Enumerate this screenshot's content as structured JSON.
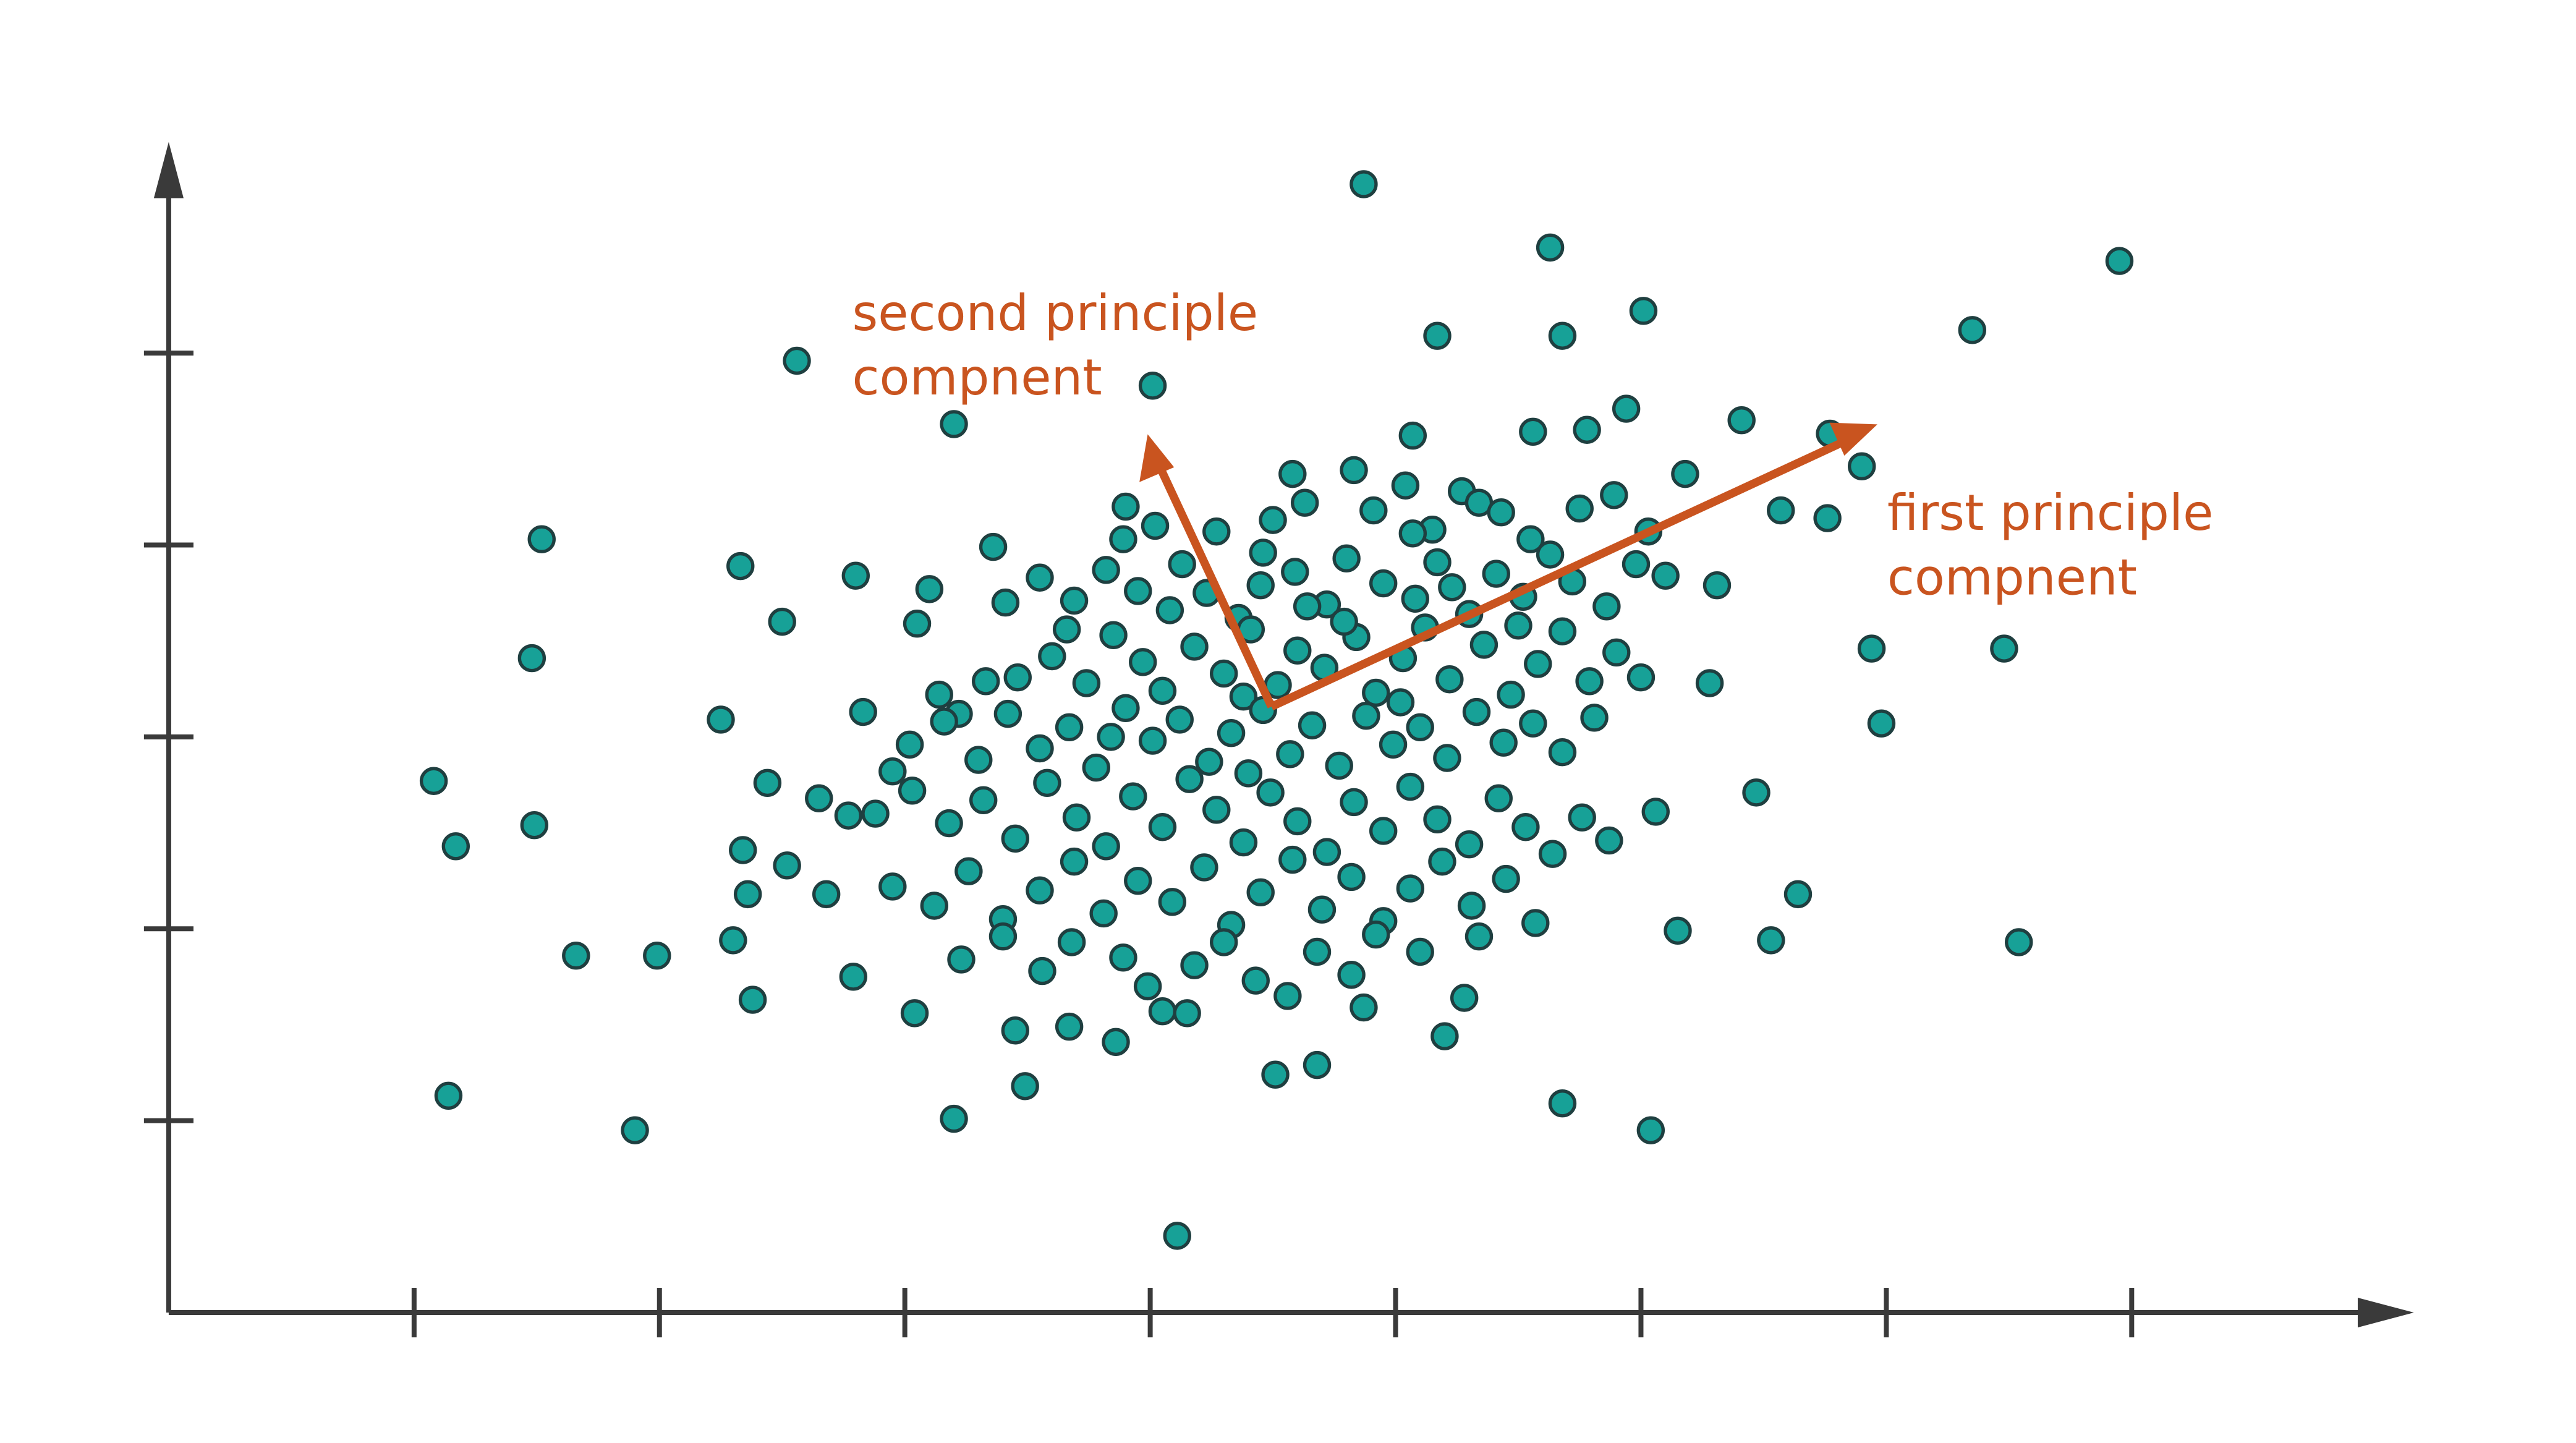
{
  "chart_data": {
    "type": "scatter",
    "color": "#17a197",
    "edgecolor": "#1f3f40",
    "annotation_color": "#c9541f",
    "axis_color": "#3a3a3a",
    "xlim": [
      0,
      9.15
    ],
    "ylim": [
      0,
      6.1
    ],
    "xticks": [
      1,
      2,
      3,
      4,
      5,
      6,
      7,
      8
    ],
    "yticks": [
      1,
      2,
      3,
      4,
      5
    ],
    "annotations": [
      [
        "second principle",
        "compnent"
      ],
      [
        "first principle",
        "compnent"
      ]
    ],
    "x": [
      4.87,
      5.63,
      7.95,
      6.01,
      5.17,
      5.68,
      7.35,
      2.56,
      4.01,
      3.2,
      1.52,
      2.33,
      1.48,
      2.5,
      2.8,
      1.08,
      1.17,
      1.49,
      2.25,
      1.66,
      1.99,
      1.14,
      1.9,
      3.2,
      4.11,
      5.68,
      6.04,
      7.54,
      7.48,
      6.94,
      6.98,
      6.47,
      6.64,
      6.53,
      6.15,
      6.06,
      6.76,
      6.57,
      6.9,
      6.77,
      6.41,
      4.51,
      4.68,
      5.2,
      5.28,
      4.87,
      3.49,
      3.86,
      3.04,
      2.38,
      2.79,
      2.3,
      2.36,
      2.34,
      2.52,
      2.68,
      2.44,
      2.65,
      2.77,
      2.95,
      2.83,
      3.05,
      3.1,
      3.36,
      3.41,
      3.33,
      3.22,
      3.14,
      6.28,
      6.31,
      6.18,
      5.94,
      5.78,
      5.56,
      5.07,
      3.45,
      3.67,
      4.05,
      4.15,
      3.9,
      4.02,
      4.27,
      4.5,
      4.58,
      4.63,
      4.83,
      4.91,
      5.04,
      5.15,
      5.27,
      5.34,
      5.43,
      5.55,
      5.75,
      5.89,
      6.03,
      3.89,
      4.46,
      5.07,
      3.55,
      3.69,
      3.82,
      3.95,
      4.08,
      4.23,
      4.36,
      4.45,
      4.59,
      4.72,
      4.8,
      4.95,
      5.08,
      5.17,
      5.3,
      5.41,
      5.52,
      5.63,
      5.72,
      5.86,
      5.98,
      6.1,
      4.13,
      4.64,
      5.23,
      3.46,
      3.6,
      3.74,
      3.85,
      3.97,
      4.05,
      4.18,
      4.3,
      4.41,
      4.52,
      4.6,
      4.71,
      4.84,
      4.92,
      5.03,
      5.12,
      5.22,
      5.36,
      5.47,
      5.58,
      5.68,
      5.79,
      5.9,
      6.0,
      3.66,
      4.38,
      4.79,
      5.5,
      3.02,
      3.16,
      3.3,
      3.42,
      3.55,
      3.67,
      3.78,
      3.9,
      4.01,
      4.12,
      4.24,
      4.33,
      4.46,
      4.57,
      4.66,
      4.77,
      4.88,
      4.99,
      5.1,
      5.21,
      5.33,
      5.44,
      5.56,
      5.68,
      5.81,
      3.84,
      4.4,
      5.02,
      2.88,
      3.03,
      3.18,
      3.32,
      3.45,
      3.58,
      3.7,
      3.82,
      3.93,
      4.05,
      4.16,
      4.27,
      4.38,
      4.49,
      4.6,
      4.72,
      4.83,
      4.95,
      5.06,
      5.17,
      5.3,
      5.42,
      5.53,
      5.64,
      5.76,
      5.87,
      2.95,
      3.12,
      3.26,
      3.4,
      3.55,
      3.69,
      3.81,
      3.95,
      4.09,
      4.22,
      4.33,
      4.45,
      4.58,
      4.7,
      4.82,
      4.95,
      5.06,
      5.19,
      5.31,
      5.45,
      5.57,
      3.23,
      3.4,
      3.56,
      3.68,
      3.89,
      3.99,
      4.18,
      4.3,
      4.43,
      4.56,
      4.68,
      4.82,
      4.92,
      5.1,
      5.34
    ],
    "values": [
      5.88,
      5.55,
      5.48,
      5.22,
      5.09,
      5.09,
      5.12,
      4.96,
      4.83,
      4.63,
      4.03,
      3.89,
      3.41,
      3.6,
      3.84,
      2.77,
      2.43,
      2.54,
      3.09,
      1.86,
      1.86,
      1.13,
      0.95,
      1.01,
      0.4,
      1.09,
      0.95,
      1.93,
      3.46,
      3.46,
      3.07,
      2.71,
      2.18,
      1.94,
      1.99,
      2.61,
      4.14,
      4.18,
      4.41,
      4.58,
      4.65,
      1.24,
      1.29,
      1.44,
      1.64,
      1.59,
      1.18,
      1.41,
      1.56,
      1.63,
      1.75,
      1.94,
      2.18,
      2.41,
      2.33,
      2.18,
      2.76,
      2.68,
      2.59,
      2.82,
      3.13,
      3.59,
      3.77,
      3.99,
      3.7,
      3.29,
      3.12,
      3.22,
      3.28,
      3.79,
      4.37,
      4.71,
      4.6,
      4.59,
      4.57,
      1.47,
      1.49,
      1.57,
      1.56,
      4.2,
      4.1,
      4.07,
      4.13,
      4.37,
      4.22,
      4.39,
      4.18,
      4.31,
      4.08,
      4.28,
      4.22,
      4.17,
      4.03,
      4.19,
      4.26,
      4.07,
      4.03,
      3.96,
      4.06,
      3.83,
      3.71,
      3.87,
      3.76,
      3.66,
      3.75,
      3.62,
      3.79,
      3.86,
      3.69,
      3.93,
      3.8,
      3.72,
      3.91,
      3.64,
      3.85,
      3.73,
      3.95,
      3.81,
      3.68,
      3.9,
      3.84,
      3.9,
      3.68,
      3.78,
      3.31,
      3.42,
      3.28,
      3.53,
      3.39,
      3.24,
      3.47,
      3.33,
      3.56,
      3.27,
      3.45,
      3.36,
      3.52,
      3.23,
      3.41,
      3.57,
      3.3,
      3.48,
      3.22,
      3.38,
      3.55,
      3.29,
      3.44,
      3.31,
      3.56,
      3.21,
      3.6,
      3.58,
      2.96,
      3.08,
      2.88,
      3.12,
      2.94,
      3.05,
      2.84,
      3.15,
      2.98,
      3.09,
      2.87,
      3.02,
      3.14,
      2.91,
      3.06,
      2.85,
      3.11,
      2.96,
      3.05,
      2.89,
      3.13,
      2.97,
      3.07,
      2.92,
      3.1,
      3.0,
      2.81,
      3.18,
      2.6,
      2.72,
      2.55,
      2.67,
      2.47,
      2.76,
      2.58,
      2.43,
      2.69,
      2.53,
      2.78,
      2.62,
      2.45,
      2.71,
      2.56,
      2.4,
      2.66,
      2.51,
      2.74,
      2.57,
      2.44,
      2.68,
      2.53,
      2.39,
      2.58,
      2.46,
      2.22,
      2.12,
      2.3,
      2.05,
      2.2,
      2.35,
      2.08,
      2.25,
      2.14,
      2.32,
      2.02,
      2.19,
      2.36,
      2.1,
      2.27,
      2.04,
      2.21,
      2.35,
      2.12,
      2.26,
      2.03,
      1.84,
      1.96,
      1.78,
      1.93,
      1.85,
      1.7,
      1.81,
      1.93,
      1.73,
      1.65,
      1.88,
      1.76,
      1.97,
      1.88,
      1.96
    ]
  }
}
